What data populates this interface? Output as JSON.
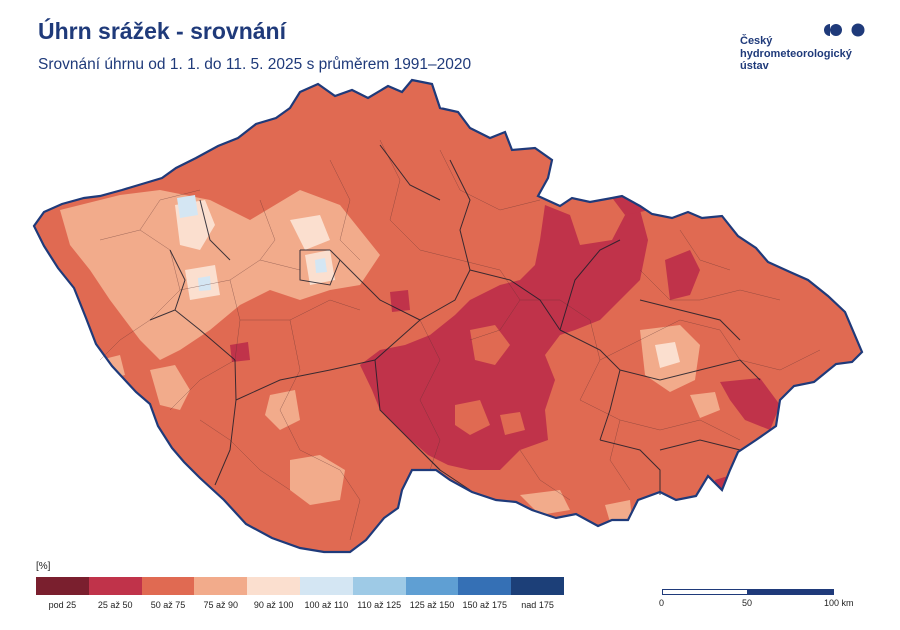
{
  "header": {
    "title": "Úhrn srážek - srovnání",
    "subtitle": "Srovnání úhrnu od 1. 1. do 11. 5. 2025 s průměrem 1991–2020"
  },
  "logo": {
    "line1": "Český",
    "line2": "hydrometeorologický",
    "line3": "ústav"
  },
  "legend": {
    "unit": "[%]",
    "classes": [
      {
        "label": "pod 25",
        "color": "#7a1f2e"
      },
      {
        "label": "25 až 50",
        "color": "#c0334a"
      },
      {
        "label": "50 až 75",
        "color": "#e06a52"
      },
      {
        "label": "75 až 90",
        "color": "#f2ab8b"
      },
      {
        "label": "90 až 100",
        "color": "#fbdfcf"
      },
      {
        "label": "100 až 110",
        "color": "#d4e6f3"
      },
      {
        "label": "110 až 125",
        "color": "#9ecae6"
      },
      {
        "label": "125 až 150",
        "color": "#5f9fd3"
      },
      {
        "label": "150 až 175",
        "color": "#3570b5"
      },
      {
        "label": "nad 175",
        "color": "#1c3f78"
      }
    ]
  },
  "scale": {
    "zero": "0",
    "mid": "50",
    "end": "100 km"
  },
  "colors": {
    "brand": "#1f3a7a",
    "border": "#1f3a7a"
  }
}
